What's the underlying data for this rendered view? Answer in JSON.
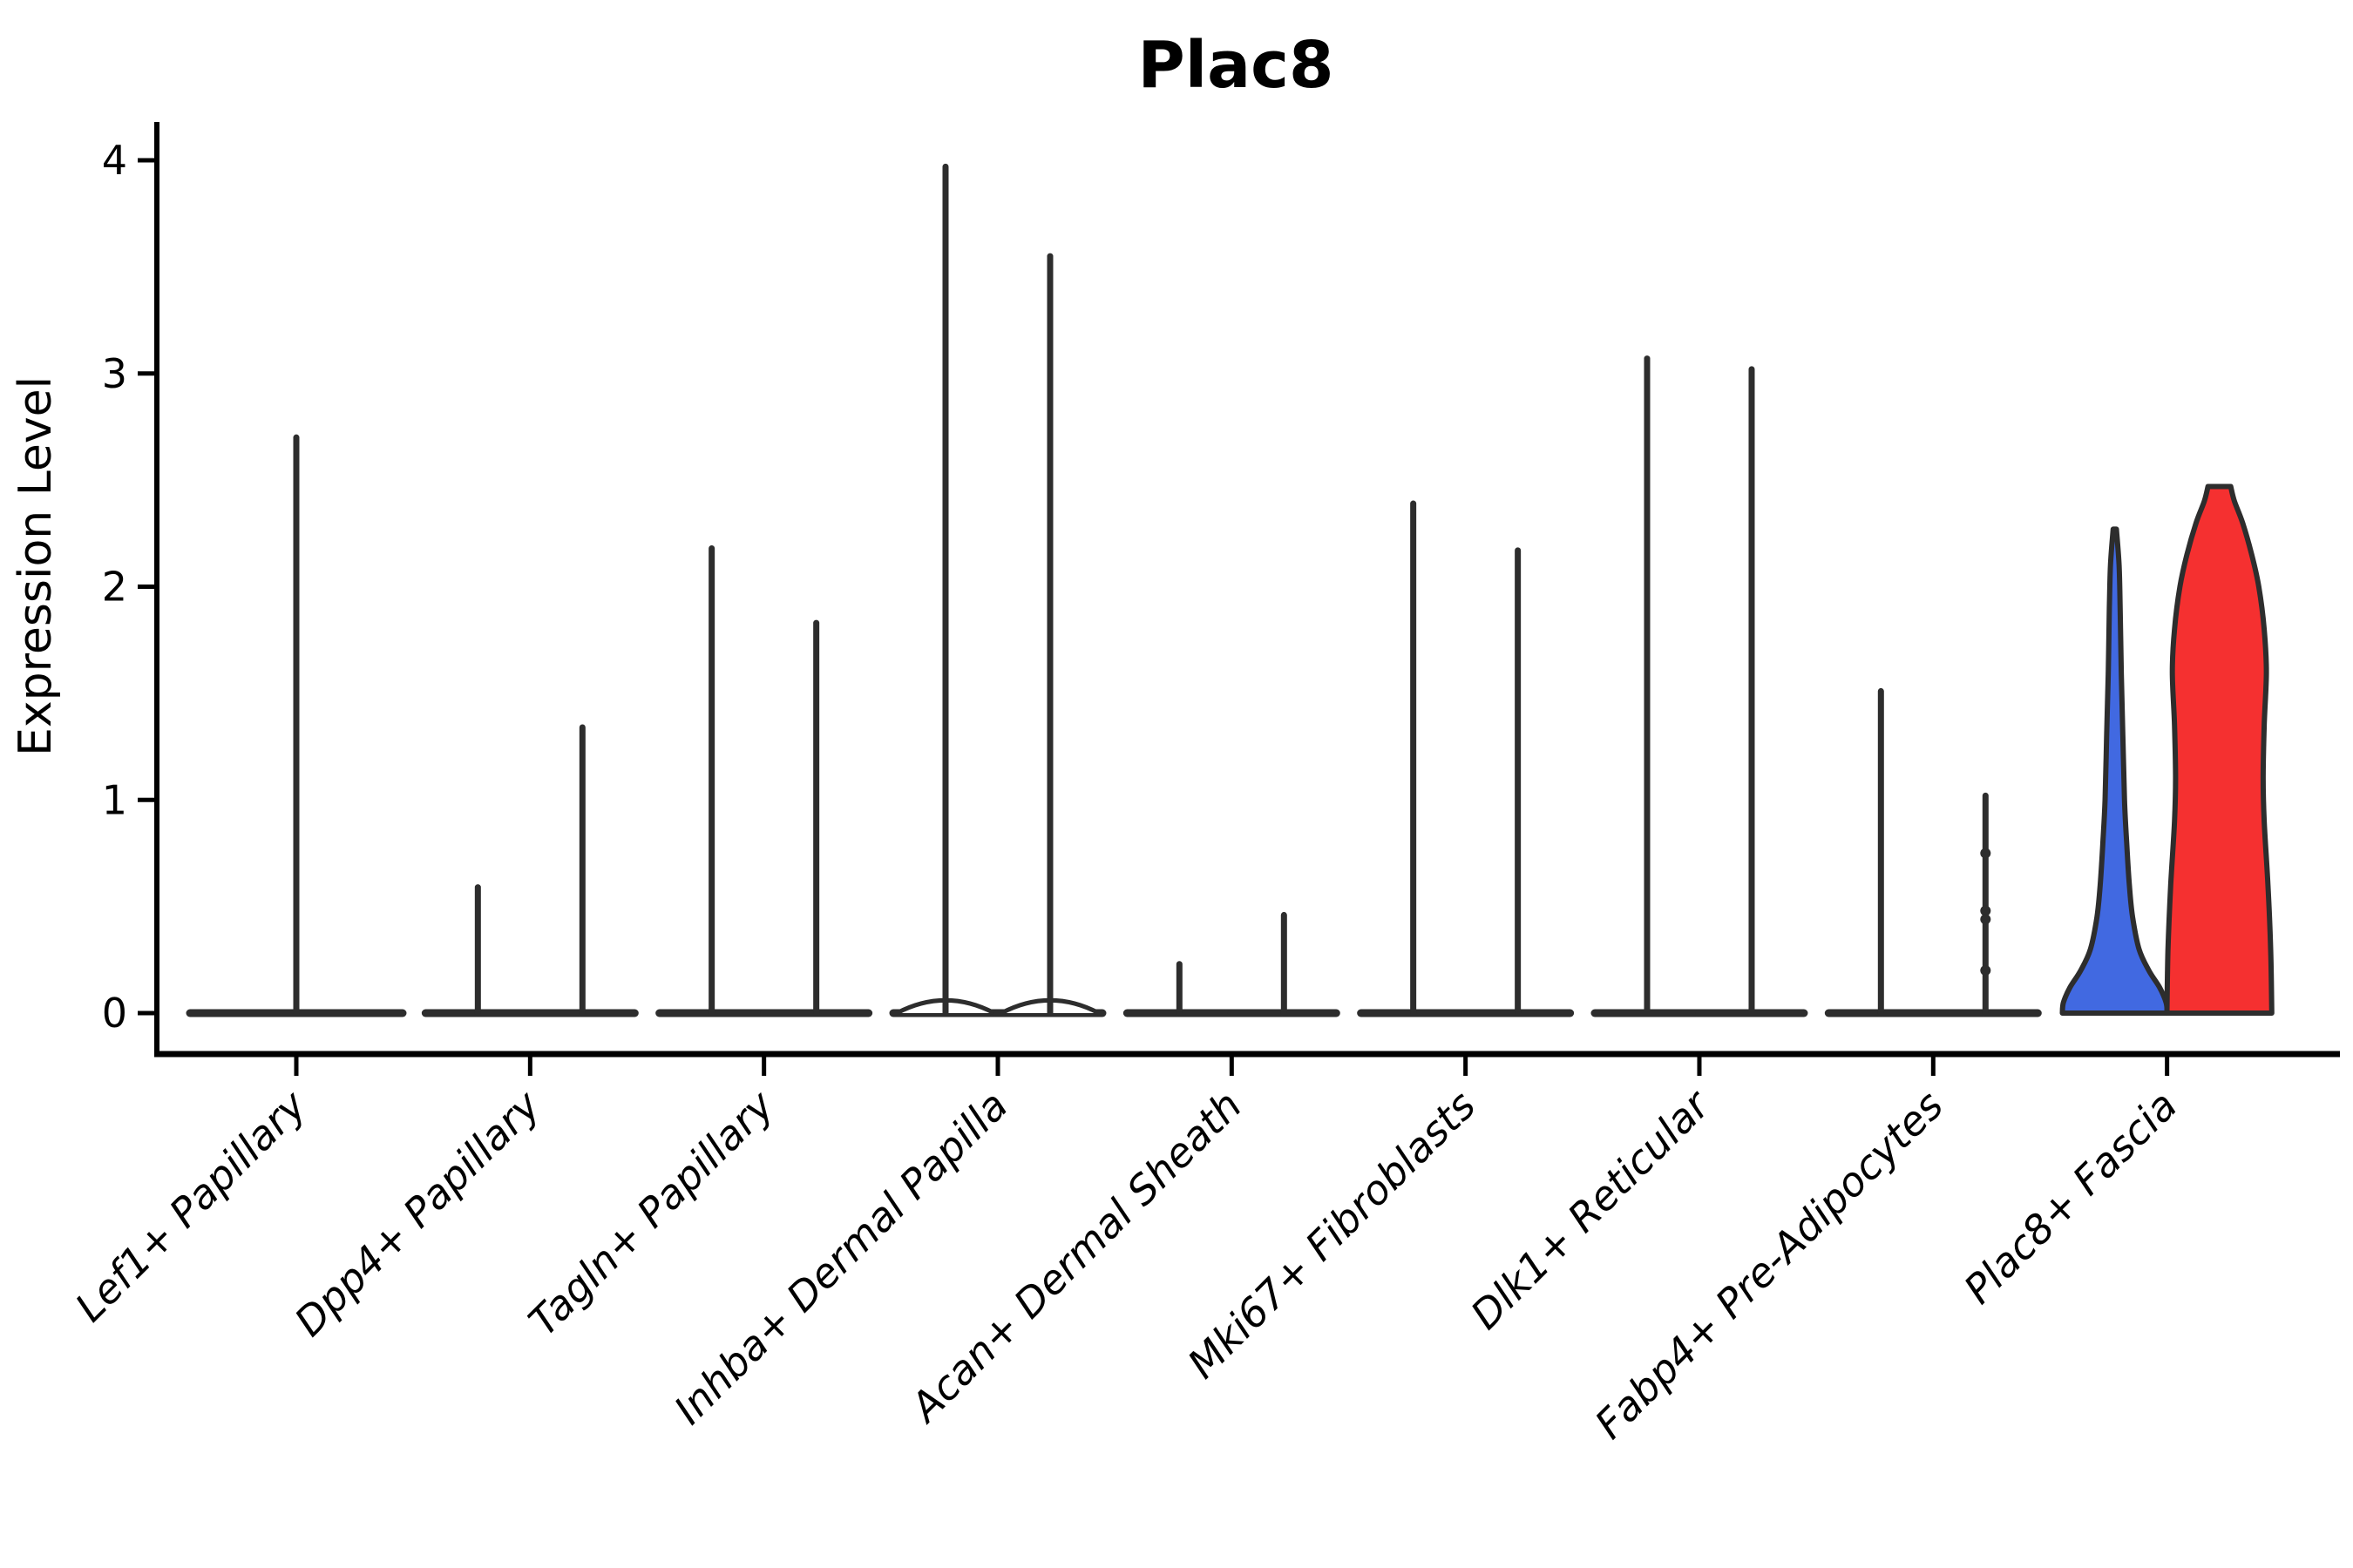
{
  "palette": {
    "highlight_blue": "#4169e1",
    "highlight_red": "#f53030",
    "violin_fill_default": "#ffffff",
    "violin_outline": "#2d2d2d",
    "axis": "#000000",
    "background": "#ffffff"
  },
  "chart_data": {
    "type": "violin",
    "title": "Plac8",
    "xlabel": "",
    "ylabel": "Expression Level",
    "ylim": [
      0,
      4.35
    ],
    "yticks": [
      0,
      1,
      2,
      3,
      4
    ],
    "grid": false,
    "legend": "none",
    "x_tick_rotation_deg": 45,
    "categories": [
      {
        "label": "Lef1+ Papillary",
        "violins": [
          {
            "position": "full",
            "peak": 2.7,
            "fill": "#ffffff",
            "shape": "spike"
          }
        ]
      },
      {
        "label": "Dpp4+ Papillary",
        "violins": [
          {
            "position": "left",
            "peak": 0.59,
            "fill": "#ffffff",
            "shape": "spike"
          },
          {
            "position": "right",
            "peak": 1.34,
            "fill": "#ffffff",
            "shape": "spike"
          }
        ]
      },
      {
        "label": "Tagln+ Papillary",
        "violins": [
          {
            "position": "left",
            "peak": 2.18,
            "fill": "#ffffff",
            "shape": "spike"
          },
          {
            "position": "right",
            "peak": 1.83,
            "fill": "#ffffff",
            "shape": "spike"
          }
        ]
      },
      {
        "label": "Inhba+ Dermal Papilla",
        "violins": [
          {
            "position": "left",
            "peak": 3.97,
            "fill": "#ffffff",
            "shape": "spike",
            "base_mound": 0.06
          },
          {
            "position": "right",
            "peak": 3.55,
            "fill": "#ffffff",
            "shape": "spike",
            "base_mound": 0.06
          }
        ]
      },
      {
        "label": "Acan+ Dermal Sheath",
        "violins": [
          {
            "position": "left",
            "peak": 0.23,
            "fill": "#ffffff",
            "shape": "spike"
          },
          {
            "position": "right",
            "peak": 0.46,
            "fill": "#ffffff",
            "shape": "spike"
          }
        ]
      },
      {
        "label": "Mki67+ Fibroblasts",
        "violins": [
          {
            "position": "left",
            "peak": 2.39,
            "fill": "#ffffff",
            "shape": "spike"
          },
          {
            "position": "right",
            "peak": 2.17,
            "fill": "#ffffff",
            "shape": "spike"
          }
        ]
      },
      {
        "label": "Dlk1+ Reticular",
        "violins": [
          {
            "position": "left",
            "peak": 3.07,
            "fill": "#ffffff",
            "shape": "spike"
          },
          {
            "position": "right",
            "peak": 3.02,
            "fill": "#ffffff",
            "shape": "spike"
          }
        ]
      },
      {
        "label": "Fabp4+ Pre-Adipocytes",
        "violins": [
          {
            "position": "left",
            "peak": 1.51,
            "fill": "#ffffff",
            "shape": "spike"
          },
          {
            "position": "right",
            "peak": 1.02,
            "fill": "#ffffff",
            "shape": "spike",
            "knots": [
              0.75,
              0.48,
              0.44,
              0.2
            ]
          }
        ]
      },
      {
        "label": "Plac8+ Fascia",
        "violins": [
          {
            "position": "left",
            "peak": 2.27,
            "fill": "#4169e1",
            "shape": "filled",
            "profile": [
              [
                0,
                0.97
              ],
              [
                0.05,
                0.95
              ],
              [
                0.12,
                0.83
              ],
              [
                0.2,
                0.63
              ],
              [
                0.3,
                0.45
              ],
              [
                0.45,
                0.33
              ],
              [
                0.6,
                0.27
              ],
              [
                0.8,
                0.22
              ],
              [
                1.0,
                0.18
              ],
              [
                1.3,
                0.15
              ],
              [
                1.6,
                0.12
              ],
              [
                1.9,
                0.1
              ],
              [
                2.1,
                0.08
              ],
              [
                2.27,
                0.03
              ]
            ]
          },
          {
            "position": "right",
            "peak": 2.47,
            "fill": "#f53030",
            "shape": "filled",
            "flat_top": true,
            "profile": [
              [
                0,
                0.97
              ],
              [
                0.3,
                0.95
              ],
              [
                0.6,
                0.9
              ],
              [
                0.9,
                0.83
              ],
              [
                1.1,
                0.81
              ],
              [
                1.35,
                0.83
              ],
              [
                1.6,
                0.87
              ],
              [
                1.8,
                0.83
              ],
              [
                2.0,
                0.73
              ],
              [
                2.15,
                0.6
              ],
              [
                2.3,
                0.43
              ],
              [
                2.4,
                0.28
              ],
              [
                2.47,
                0.21
              ]
            ]
          }
        ]
      }
    ]
  }
}
